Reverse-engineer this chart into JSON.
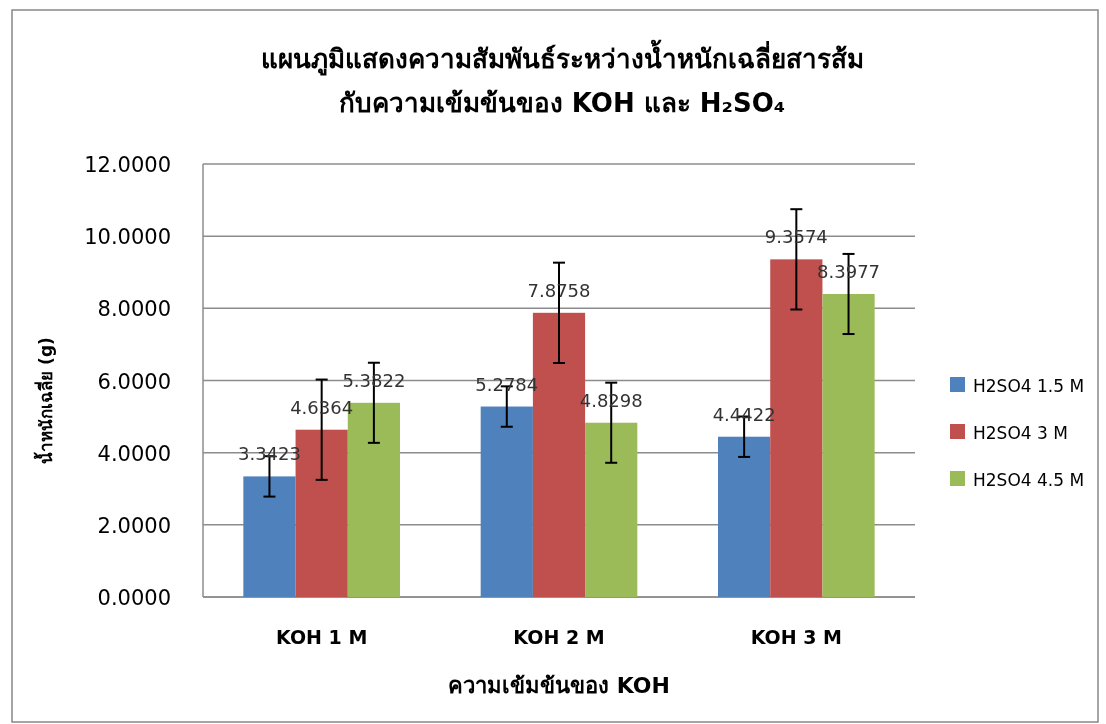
{
  "chart_data": {
    "type": "bar",
    "title": "แผนภูมิแสดงความสัมพันธ์ระหว่างน้ำหนักเฉลี่ยสารส้ม\nกับความเข้มข้นของ KOH และ H₂SO₄",
    "xlabel": "ความเข้มข้นของ KOH",
    "ylabel": "น้ำหนักเฉลี่ย (g)",
    "categories": [
      "KOH 1 M",
      "KOH 2 M",
      "KOH 3 M"
    ],
    "series": [
      {
        "name": "H2SO4 1.5 M",
        "color": "#4f81bd",
        "values": [
          3.3423,
          5.2784,
          4.4422
        ],
        "errors": [
          0.56,
          0.56,
          0.56
        ]
      },
      {
        "name": "H2SO4 3 M",
        "color": "#c0504d",
        "values": [
          4.6364,
          7.8758,
          9.3574
        ],
        "errors": [
          1.39,
          1.39,
          1.39
        ]
      },
      {
        "name": "H2SO4 4.5 M",
        "color": "#9bbb59",
        "values": [
          5.3822,
          4.8298,
          8.3977
        ],
        "errors": [
          1.11,
          1.11,
          1.11
        ]
      }
    ],
    "ylim": [
      0,
      12
    ],
    "yticks": [
      {
        "value": 0,
        "label": "0.0000"
      },
      {
        "value": 2,
        "label": "2.0000"
      },
      {
        "value": 4,
        "label": "4.0000"
      },
      {
        "value": 6,
        "label": "6.0000"
      },
      {
        "value": 8,
        "label": "8.0000"
      },
      {
        "value": 10,
        "label": "10.0000"
      },
      {
        "value": 12,
        "label": "12.0000"
      }
    ],
    "grid": "y",
    "legend": "right",
    "data_labels": true
  }
}
